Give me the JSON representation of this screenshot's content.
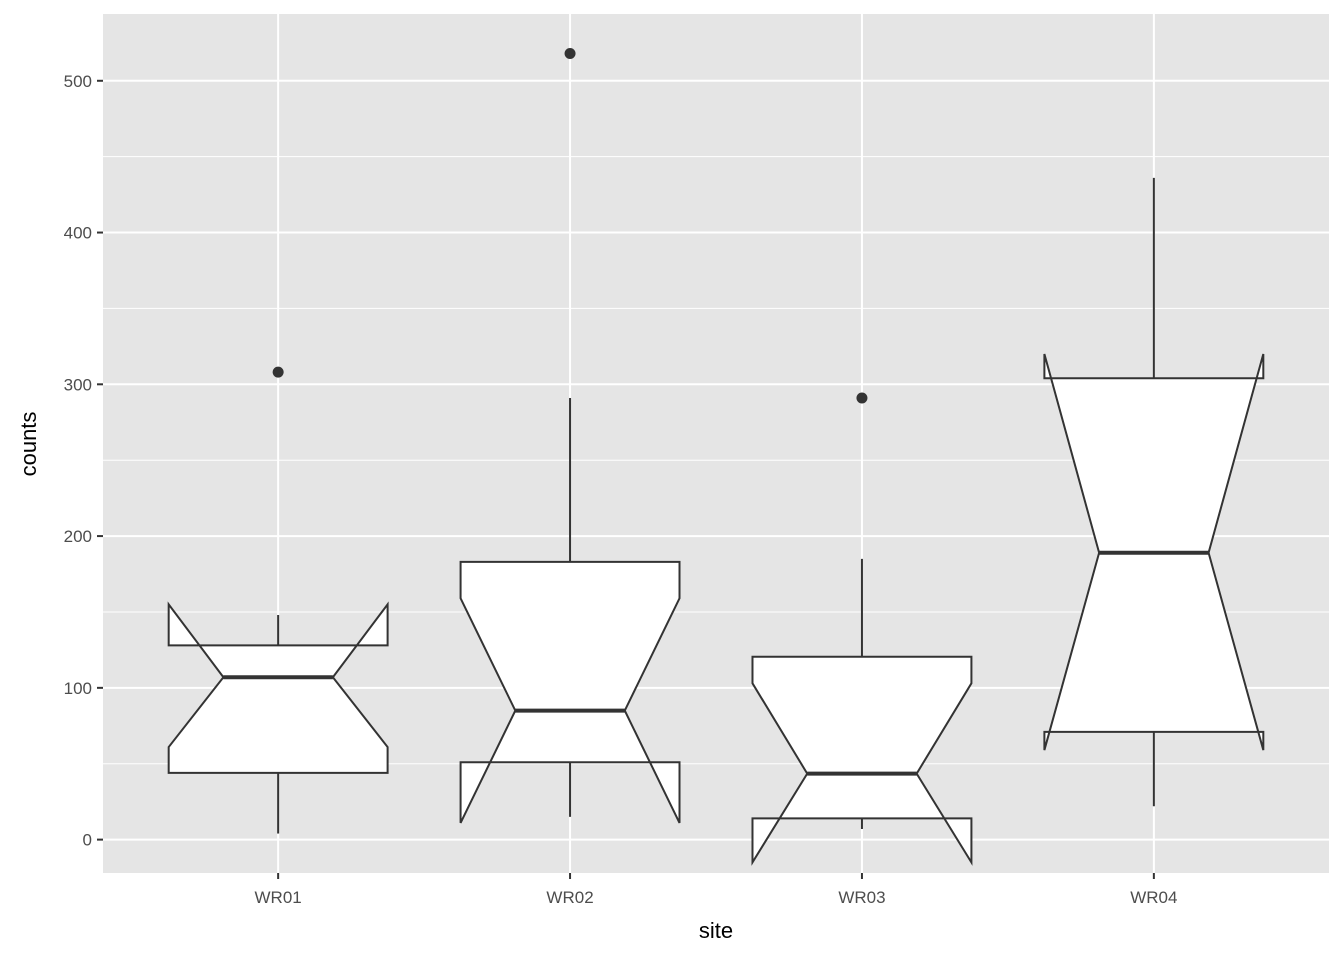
{
  "chart_data": {
    "type": "boxplot",
    "notched": true,
    "title": "",
    "xlabel": "site",
    "ylabel": "counts",
    "categories": [
      "WR01",
      "WR02",
      "WR03",
      "WR04"
    ],
    "ylim": [
      -22,
      544
    ],
    "yticks": [
      0,
      100,
      200,
      300,
      400,
      500
    ],
    "grid": true,
    "boxes": [
      {
        "site": "WR01",
        "whisker_low": 4,
        "q1": 44,
        "median": 107,
        "q3": 128,
        "whisker_high": 148,
        "notch_low": 61,
        "notch_high": 155,
        "outliers": [
          308
        ]
      },
      {
        "site": "WR02",
        "whisker_low": 15,
        "q1": 51,
        "median": 85,
        "q3": 183,
        "whisker_high": 291,
        "notch_low": 11,
        "notch_high": 159,
        "outliers": [
          518
        ]
      },
      {
        "site": "WR03",
        "whisker_low": 7,
        "q1": 14,
        "median": 43.5,
        "q3": 120.5,
        "whisker_high": 185,
        "notch_low": -15,
        "notch_high": 103,
        "outliers": [
          291
        ]
      },
      {
        "site": "WR04",
        "whisker_low": 22,
        "q1": 71,
        "median": 189,
        "q3": 304,
        "whisker_high": 436,
        "notch_low": 59,
        "notch_high": 320,
        "outliers": []
      }
    ],
    "colors": {
      "panel": "#e5e5e5",
      "grid": "#ffffff",
      "box_fill": "#ffffff",
      "box_line": "#333333"
    }
  }
}
